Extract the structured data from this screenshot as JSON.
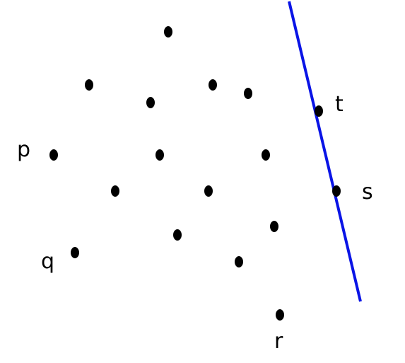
{
  "diagram": {
    "line_color": "#0a14e6",
    "point_color": "#000000",
    "labels": {
      "p": "p",
      "q": "q",
      "r": "r",
      "s": "s",
      "t": "t"
    }
  }
}
